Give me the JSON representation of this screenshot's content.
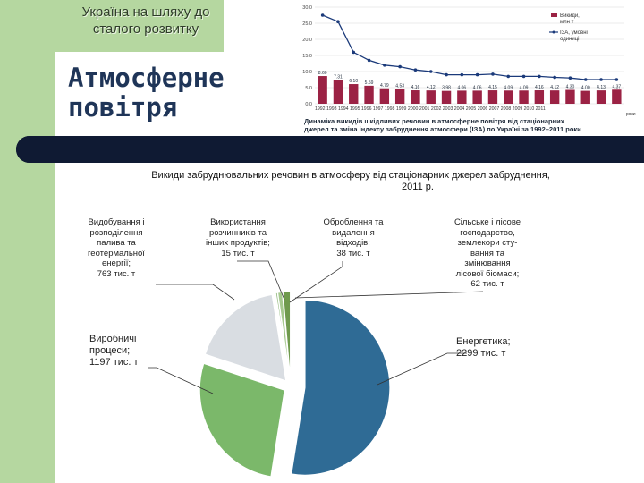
{
  "subtitle": [
    "Україна на шляху до",
    "сталого розвитку"
  ],
  "title": [
    "Атмосферне",
    "повітря"
  ],
  "line_chart": {
    "yticks": [
      "30.0",
      "25.0",
      "20.0",
      "15.0",
      "10.0",
      "5.0",
      "0.0"
    ],
    "legend": [
      {
        "label": [
          "Викиди,",
          "млн т"
        ]
      },
      {
        "label": [
          "ІЗА, умовні",
          "одиниці"
        ]
      }
    ],
    "year_labels": "1992 1993 1994 1995 1996 1997 1998 1999 2000 2001 2002 2003 2004 2005 2006 2007 2008 2009 2010 2011",
    "axis_unit": "роки",
    "caption": [
      "Динаміка викидів шкідливих речовин в атмосферне повітря від стаціонарних",
      "джерел та зміна індексу забруднення атмосфери (ІЗА) по Україні за 1992–2011 роки"
    ]
  },
  "chart_data": [
    {
      "type": "bar",
      "title": "Динаміка викидів шкідливих речовин в атмосферне повітря від стаціонарних джерел та зміна індексу забруднення атмосфери (ІЗА) по Україні за 1992–2011 роки",
      "xlabel": "роки",
      "ylim": [
        0,
        30
      ],
      "categories": [
        "1992",
        "1993",
        "1994",
        "1995",
        "1996",
        "1997",
        "1998",
        "1999",
        "2000",
        "2001",
        "2002",
        "2003",
        "2004",
        "2005",
        "2006",
        "2007",
        "2008",
        "2009",
        "2010",
        "2011"
      ],
      "series": [
        {
          "name": "Викиди, млн т",
          "type": "bar",
          "values": [
            8.6,
            7.31,
            6.1,
            5.59,
            4.79,
            4.53,
            4.16,
            4.12,
            3.98,
            4.06,
            4.06,
            4.15,
            4.09,
            4.09,
            4.16,
            4.12,
            4.3,
            4.0,
            4.13,
            4.37
          ],
          "labels": [
            "8.60",
            "7.31",
            "6.10",
            "5.59",
            "4.79",
            "4.53",
            "4.16",
            "4.12",
            "3.98",
            "4.06",
            "4.06",
            "4.15",
            "4.09",
            "4.09",
            "4.16",
            "4.12",
            "4.30",
            "4.00",
            "4.13",
            "4.37"
          ]
        },
        {
          "name": "ІЗА, умовні одиниці",
          "type": "line",
          "values": [
            27.5,
            25.5,
            16.0,
            13.5,
            12.0,
            11.5,
            10.5,
            10.0,
            9.0,
            9.0,
            9.0,
            9.2,
            8.5,
            8.5,
            8.5,
            8.2,
            8.0,
            7.5,
            7.5,
            7.5
          ]
        }
      ]
    },
    {
      "type": "pie",
      "title": "Викиди забруднювальних речовин в атмосферу від стаціонарних джерел забруднення, 2011 р.",
      "categories": [
        "Енергетика",
        "Виробничі процеси",
        "Видобування і розподілення палива та геотермальної енергії",
        "Використання розчинників та інших продуктів",
        "Оброблення та видалення відходів",
        "Сільське і лісове господарство, землекористування та змінювання лісової біомаси"
      ],
      "values": [
        2299,
        1197,
        763,
        15,
        38,
        62
      ],
      "units": "тис. т"
    }
  ],
  "pie_title": [
    "Викиди забруднювальних речовин в атмосферу від стаціонарних джерел забруднення,",
    "2011 р."
  ],
  "pie_labels": {
    "extraction": [
      "Видобування і",
      "розподілення",
      "палива та",
      "геотермальної",
      "енергії;",
      "763 тис. т"
    ],
    "solvents": [
      "Використання",
      "розчинників та",
      "інших продуктів;",
      "15 тис. т"
    ],
    "waste": [
      "Оброблення та",
      "видалення",
      "відходів;",
      "38 тис. т"
    ],
    "agriculture": [
      "Сільське і лісове",
      "господарство,",
      "землекори сту-",
      "вання та",
      "змінювання",
      "лісової біомаси;",
      "62 тис. т"
    ],
    "industry": [
      "Виробничі",
      "процеси;",
      "1197 тис. т"
    ],
    "energy": [
      "Енергетика;",
      "2299 тис. т"
    ]
  },
  "colors": {
    "sidebar": "#b5d7a0",
    "title": "#1f3558",
    "dark_bar": "#0f1a33",
    "emission_bars": "#9b2244",
    "iza_line": "#1b3a7a",
    "pie_energy": "#2f6b95",
    "pie_industry": "#7bb86a",
    "pie_extraction": "#d9dde2",
    "pie_small": "#6f9a4d"
  }
}
